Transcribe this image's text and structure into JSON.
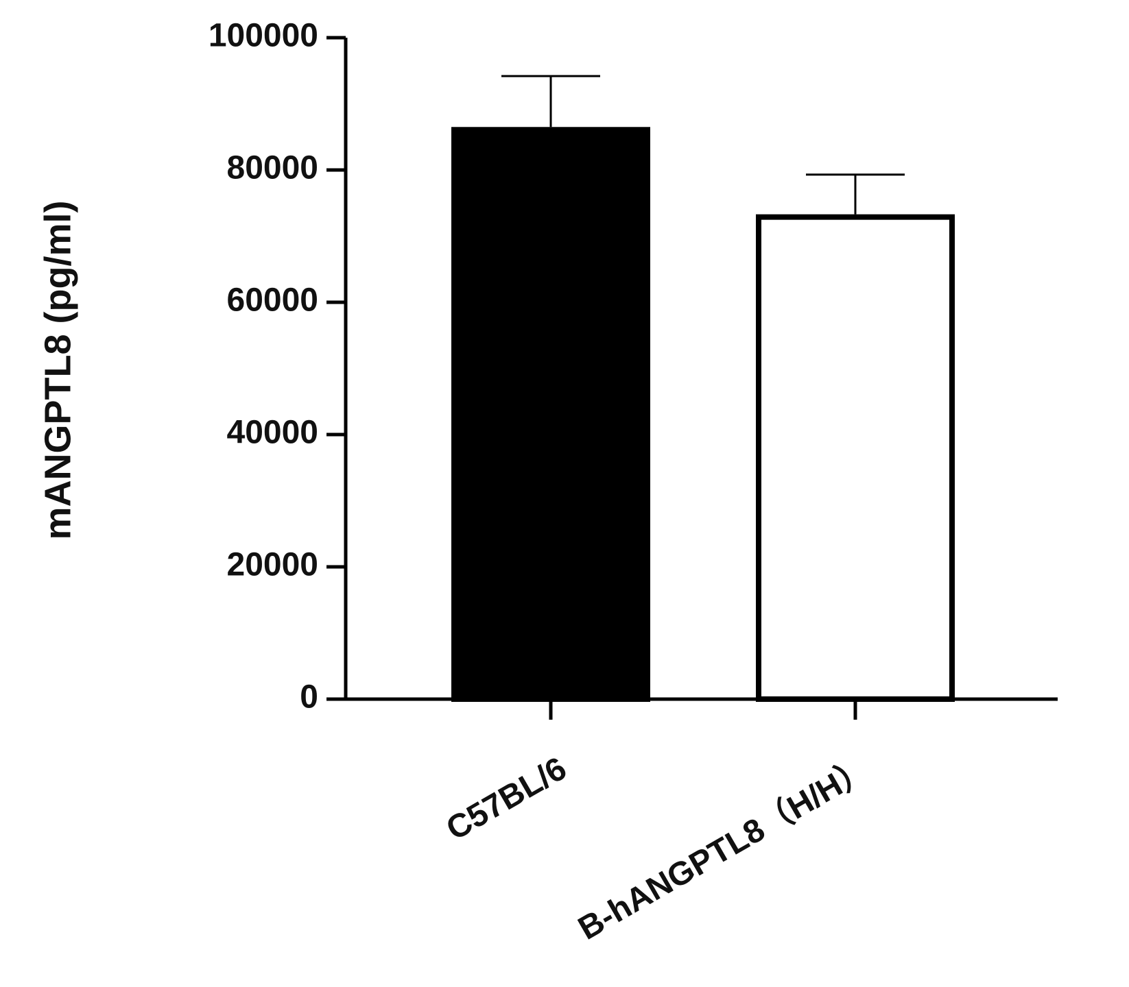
{
  "chart_data": {
    "type": "bar",
    "y_label": "mANGPTL8 (pg/ml)",
    "categories": [
      "C57BL/6",
      "B-hANGPTL8（H/H）"
    ],
    "values": [
      86500,
      73300
    ],
    "errors": [
      7700,
      6000
    ],
    "colors": [
      "#000000",
      "#ffffff"
    ],
    "ylim": [
      0,
      100000
    ],
    "yticks": [
      0,
      20000,
      40000,
      60000,
      80000,
      100000
    ],
    "grid": false
  }
}
